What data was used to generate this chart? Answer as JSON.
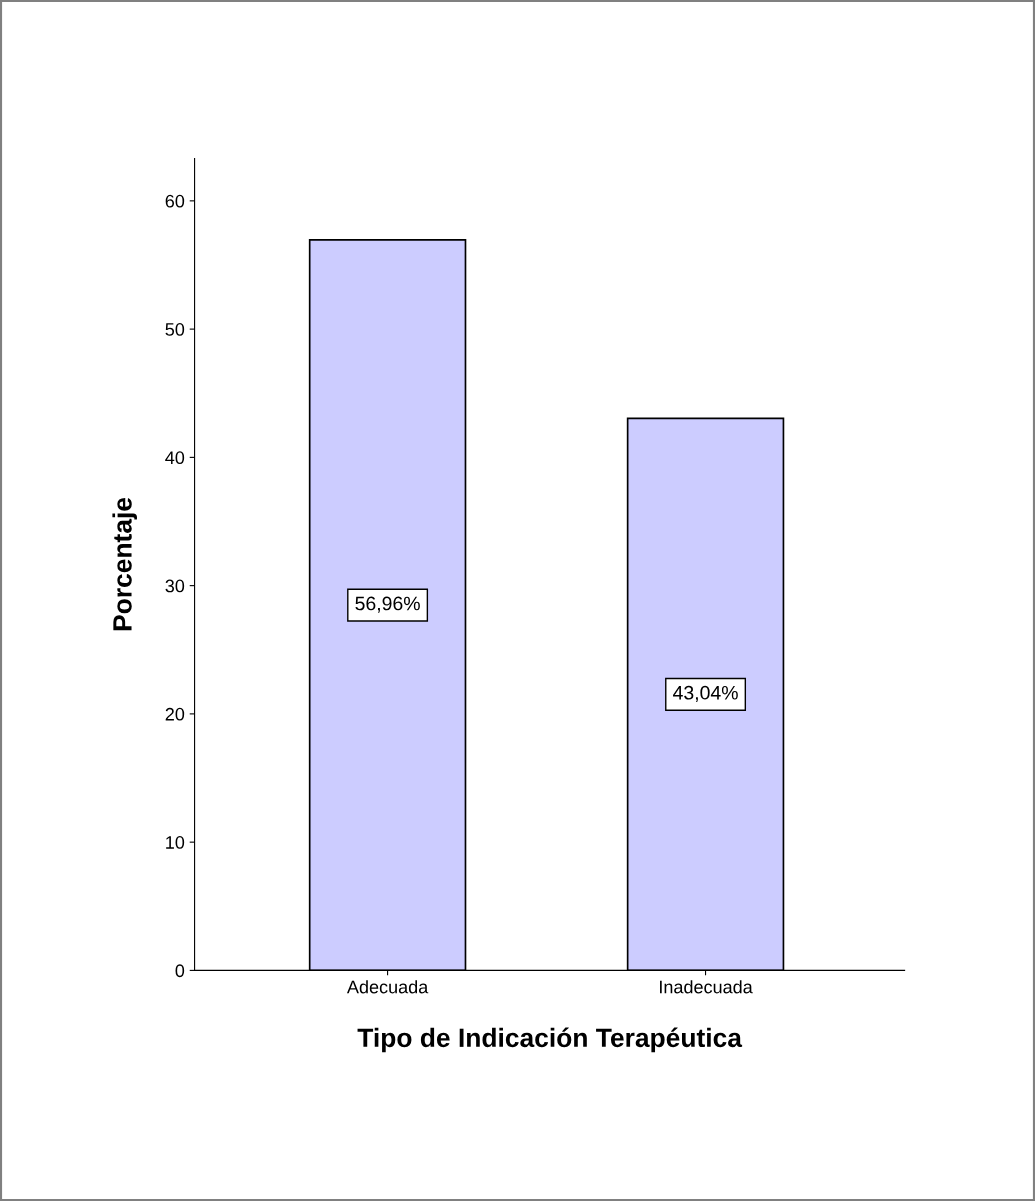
{
  "chart_data": {
    "type": "bar",
    "xlabel": "Tipo de Indicación Terapéutica",
    "ylabel": "Porcentaje",
    "categories": [
      "Adecuada",
      "Inadecuada"
    ],
    "values": [
      56.96,
      43.04
    ],
    "value_labels": [
      "56,96%",
      "43,04%"
    ],
    "color": "#ccccff",
    "ylim": [
      0,
      63.3
    ],
    "yticks": [
      0,
      10,
      20,
      30,
      40,
      50,
      60
    ],
    "grid": false,
    "legend": false
  }
}
